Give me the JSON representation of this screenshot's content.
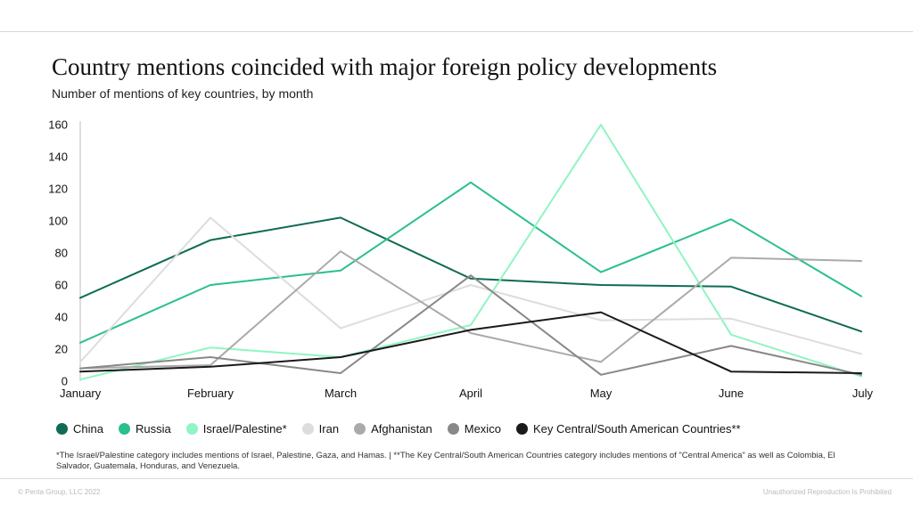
{
  "page": {
    "title": "Country mentions coincided with major foreign policy developments",
    "subtitle": "Number of mentions of key countries, by month",
    "footnote": "*The Israel/Palestine category includes mentions of Israel, Palestine, Gaza, and Hamas. | **The Key Central/South American Countries category includes mentions of \"Central America\" as well as Colombia, El Salvador, Guatemala, Honduras, and Venezuela.",
    "copyright": "© Penta Group, LLC 2022",
    "disclaimer": "Unauthorized Reproduction Is Prohibited"
  },
  "chart_data": {
    "type": "line",
    "title": "Country mentions coincided with major foreign policy developments",
    "subtitle": "Number of mentions of key countries, by month",
    "xlabel": "",
    "ylabel": "",
    "categories": [
      "January",
      "February",
      "March",
      "April",
      "May",
      "June",
      "July"
    ],
    "ylim": [
      0,
      160
    ],
    "yticks": [
      0,
      20,
      40,
      60,
      80,
      100,
      120,
      140,
      160
    ],
    "grid": false,
    "legend_position": "bottom",
    "series": [
      {
        "name": "China",
        "color": "#0f6b55",
        "values": [
          52,
          88,
          102,
          64,
          60,
          59,
          31
        ]
      },
      {
        "name": "Russia",
        "color": "#2bbf8e",
        "values": [
          24,
          60,
          69,
          124,
          68,
          101,
          53
        ]
      },
      {
        "name": "Israel/Palestine*",
        "color": "#8ff5c2",
        "values": [
          1,
          21,
          15,
          35,
          160,
          29,
          3
        ]
      },
      {
        "name": "Iran",
        "color": "#dddddd",
        "values": [
          12,
          102,
          33,
          60,
          38,
          39,
          17
        ]
      },
      {
        "name": "Afghanistan",
        "color": "#aaaaaa",
        "values": [
          8,
          10,
          81,
          30,
          12,
          77,
          75
        ]
      },
      {
        "name": "Mexico",
        "color": "#888888",
        "values": [
          8,
          15,
          5,
          66,
          4,
          22,
          4
        ]
      },
      {
        "name": "Key Central/South American Countries**",
        "color": "#1a1a1a",
        "values": [
          6,
          9,
          15,
          32,
          43,
          6,
          5
        ]
      }
    ]
  }
}
